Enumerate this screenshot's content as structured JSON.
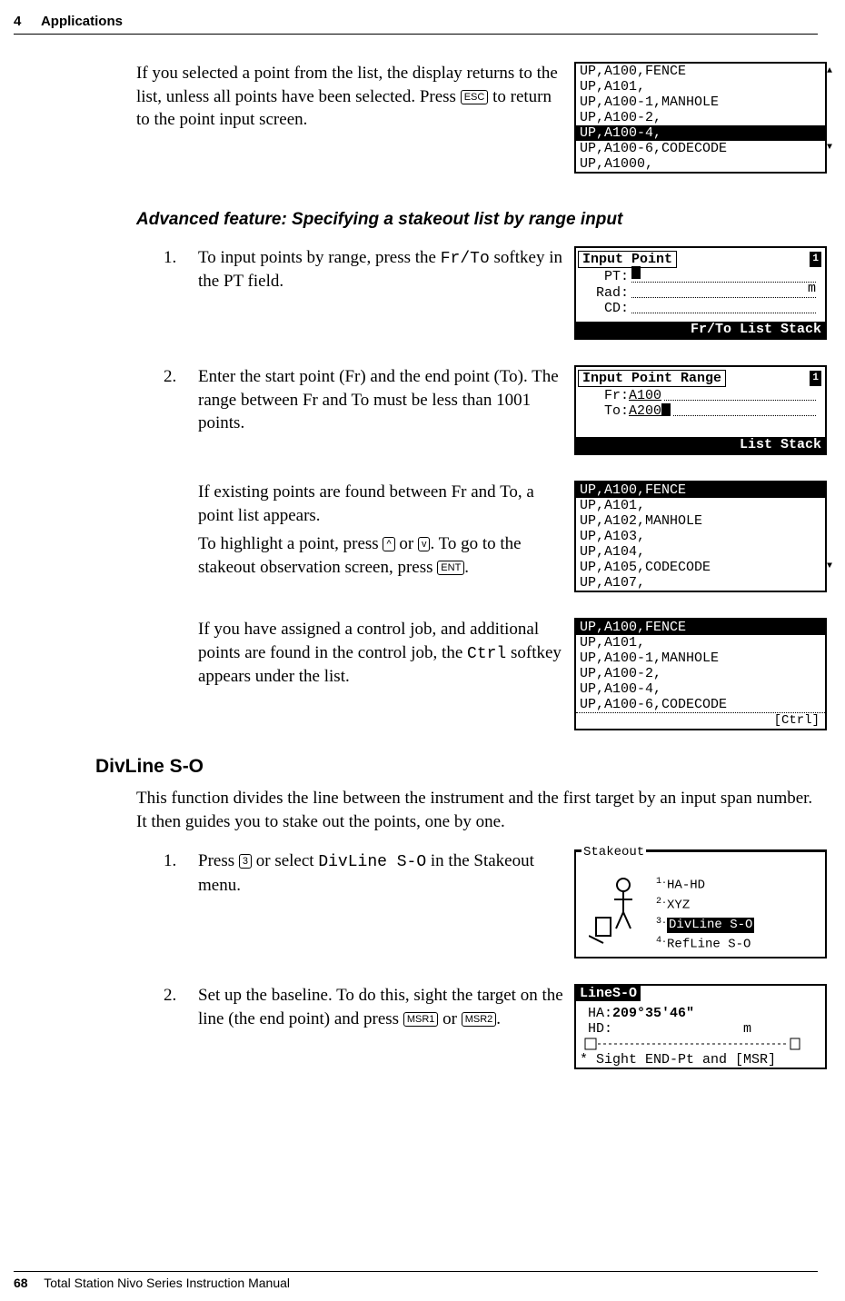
{
  "header": {
    "chapter_num": "4",
    "chapter_title": "Applications"
  },
  "footer": {
    "page_num": "68",
    "manual_title": "Total Station Nivo Series Instruction Manual"
  },
  "intro": {
    "text_a": "If you selected a point from the list, the display returns to the list, unless all points have been selected. Press ",
    "key_esc": "ESC",
    "text_b": " to return to the point input screen."
  },
  "range_section_title": "Advanced feature: Specifying a stakeout list by range input",
  "step1": {
    "num": "1.",
    "text_a": "To input points by range, press the ",
    "softkey": "Fr/To",
    "text_b": " softkey in the PT field."
  },
  "step2": {
    "num": "2.",
    "text": "Enter the start point (Fr) and the end point (To). The range between Fr and To must be less than 1001 points."
  },
  "step2b": {
    "line1": "If existing points are found between Fr and To, a point list appears.",
    "line2_a": "To highlight a point, press ",
    "key_up": "^",
    "mid": " or ",
    "key_down": "v",
    "line2_b": ". To go to the stakeout observation screen, press ",
    "key_ent": "ENT",
    "line2_c": "."
  },
  "step2c": {
    "text_a": "If you have assigned a control job, and additional points are found in the control job, the ",
    "softkey": "Ctrl",
    "text_b": " softkey appears under the list."
  },
  "divline_title": "DivLine S-O",
  "divline_intro": "This function divides the line between the instrument and the first target by an input span number. It then guides you to stake out the points, one by one.",
  "div_step1": {
    "num": "1.",
    "text_a": "Press ",
    "key_3": "3",
    "text_b": " or select ",
    "cmd": "DivLine S-O",
    "text_c": " in the Stakeout menu."
  },
  "div_step2": {
    "num": "2.",
    "text_a": "Set up the baseline. To do this, sight the target on the line (the end point) and press ",
    "key_msr1": "MSR1",
    "mid": " or ",
    "key_msr2": "MSR2",
    "text_b": "."
  },
  "screens": {
    "intro_list": {
      "rows": [
        "UP,A100,FENCE",
        "UP,A101,",
        "UP,A100-1,MANHOLE",
        "UP,A100-2,",
        "UP,A100-4,",
        "UP,A100-6,CODECODE",
        "UP,A1000,"
      ],
      "selected_index": 4
    },
    "input_point": {
      "title": "Input Point",
      "fields": [
        {
          "label": "PT:",
          "value": "",
          "cursor": true,
          "unit": ""
        },
        {
          "label": "Rad:",
          "value": "",
          "cursor": false,
          "unit": "m"
        },
        {
          "label": "CD:",
          "value": "",
          "cursor": false,
          "unit": ""
        }
      ],
      "bottom": "Fr/To List Stack",
      "badge": "1"
    },
    "input_range": {
      "title": "Input Point Range",
      "fr_label": "Fr:",
      "fr_value": "A100",
      "to_label": "To:",
      "to_value": "A200",
      "bottom": "List Stack",
      "badge": "1"
    },
    "range_list": {
      "rows": [
        "UP,A100,FENCE",
        "UP,A101,",
        "UP,A102,MANHOLE",
        "UP,A103,",
        "UP,A104,",
        "UP,A105,CODECODE",
        "UP,A107,"
      ],
      "selected_index": 0
    },
    "ctrl_list": {
      "rows": [
        "UP,A100,FENCE",
        "UP,A101,",
        "UP,A100-1,MANHOLE",
        "UP,A100-2,",
        "UP,A100-4,",
        "UP,A100-6,CODECODE"
      ],
      "selected_index": 0,
      "footer_label": "[Ctrl]"
    },
    "stakeout_menu": {
      "frame_title": "Stakeout",
      "items": [
        {
          "n": "1.",
          "label": "HA-HD"
        },
        {
          "n": "2.",
          "label": "XYZ"
        },
        {
          "n": "3.",
          "label": "DivLine S-O"
        },
        {
          "n": "4.",
          "label": "RefLine S-O"
        }
      ],
      "selected_index": 2
    },
    "lines_o": {
      "title": "LineS-O",
      "ha_label": "HA:",
      "ha_value": "209°35'46\"",
      "hd_label": "HD:",
      "hd_unit": "m",
      "hint": "* Sight END-Pt and [MSR]"
    }
  }
}
